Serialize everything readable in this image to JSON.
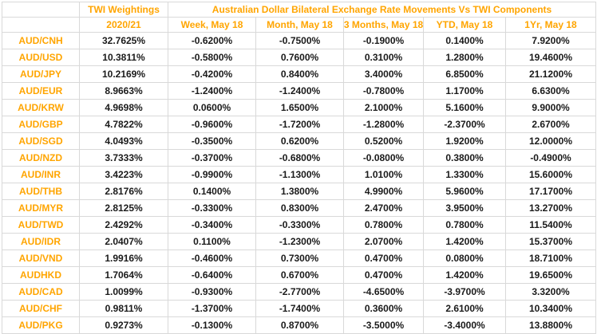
{
  "colors": {
    "accent_orange": "#FFA500",
    "value_text": "#1A1A1A",
    "gridline": "#D9D9D9",
    "background": "#FFFFFF"
  },
  "header": {
    "corner": "",
    "twi_title": "TWI Weightings",
    "main_title": "Australian Dollar Bilateral Exchange Rate Movements Vs TWI Components"
  },
  "subheader": {
    "corner": "",
    "twi_period": "2020/21",
    "periods": [
      "Week, May 18",
      "Month, May 18",
      "3 Months, May 18",
      "YTD, May 18",
      "1Yr, May 18"
    ]
  },
  "table": {
    "rows": [
      {
        "label": "AUD/CNH",
        "values": [
          "32.7625%",
          "-0.6200%",
          "-0.7500%",
          "-0.1900%",
          "0.1400%",
          "7.9200%"
        ]
      },
      {
        "label": "AUD/USD",
        "values": [
          "10.3811%",
          "-0.5800%",
          "0.7600%",
          "0.3100%",
          "1.2800%",
          "19.4600%"
        ]
      },
      {
        "label": "AUD/JPY",
        "values": [
          "10.2169%",
          "-0.4200%",
          "0.8400%",
          "3.4000%",
          "6.8500%",
          "21.1200%"
        ]
      },
      {
        "label": "AUD/EUR",
        "values": [
          "8.9663%",
          "-1.2400%",
          "-1.2400%",
          "-0.7800%",
          "1.1700%",
          "6.6300%"
        ]
      },
      {
        "label": "AUD/KRW",
        "values": [
          "4.9698%",
          "0.0600%",
          "1.6500%",
          "2.1000%",
          "5.1600%",
          "9.9000%"
        ]
      },
      {
        "label": "AUD/GBP",
        "values": [
          "4.7822%",
          "-0.9600%",
          "-1.7200%",
          "-1.2800%",
          "-2.3700%",
          "2.6700%"
        ]
      },
      {
        "label": "AUD/SGD",
        "values": [
          "4.0493%",
          "-0.3500%",
          "0.6200%",
          "0.5200%",
          "1.9200%",
          "12.0000%"
        ]
      },
      {
        "label": "AUD/NZD",
        "values": [
          "3.7333%",
          "-0.3700%",
          "-0.6800%",
          "-0.0800%",
          "0.3800%",
          "-0.4900%"
        ]
      },
      {
        "label": "AUD/INR",
        "values": [
          "3.4223%",
          "-0.9900%",
          "-1.1300%",
          "1.0100%",
          "1.3300%",
          "15.6000%"
        ]
      },
      {
        "label": "AUD/THB",
        "values": [
          "2.8176%",
          "0.1400%",
          "1.3800%",
          "4.9900%",
          "5.9600%",
          "17.1700%"
        ]
      },
      {
        "label": "AUD/MYR",
        "values": [
          "2.8125%",
          "-0.3300%",
          "0.8300%",
          "2.4700%",
          "3.9500%",
          "13.2700%"
        ]
      },
      {
        "label": "AUD/TWD",
        "values": [
          "2.4292%",
          "-0.3400%",
          "-0.3300%",
          "0.7800%",
          "0.7800%",
          "11.5400%"
        ]
      },
      {
        "label": "AUD/IDR",
        "values": [
          "2.0407%",
          "0.1100%",
          "-1.2300%",
          "2.0700%",
          "1.4200%",
          "15.3700%"
        ]
      },
      {
        "label": "AUD/VND",
        "values": [
          "1.9916%",
          "-0.4600%",
          "0.7300%",
          "0.4700%",
          "0.0800%",
          "18.7100%"
        ]
      },
      {
        "label": "AUDHKD",
        "values": [
          "1.7064%",
          "-0.6400%",
          "0.6700%",
          "0.4700%",
          "1.4200%",
          "19.6500%"
        ]
      },
      {
        "label": "AUD/CAD",
        "values": [
          "1.0099%",
          "-0.9300%",
          "-2.7700%",
          "-4.6500%",
          "-3.9700%",
          "3.3200%"
        ]
      },
      {
        "label": "AUD/CHF",
        "values": [
          "0.9811%",
          "-1.3700%",
          "-1.7400%",
          "0.3600%",
          "2.6100%",
          "10.3400%"
        ]
      },
      {
        "label": "AUD/PKG",
        "values": [
          "0.9273%",
          "-0.1300%",
          "0.8700%",
          "-3.5000%",
          "-3.4000%",
          "13.8800%"
        ]
      }
    ]
  }
}
